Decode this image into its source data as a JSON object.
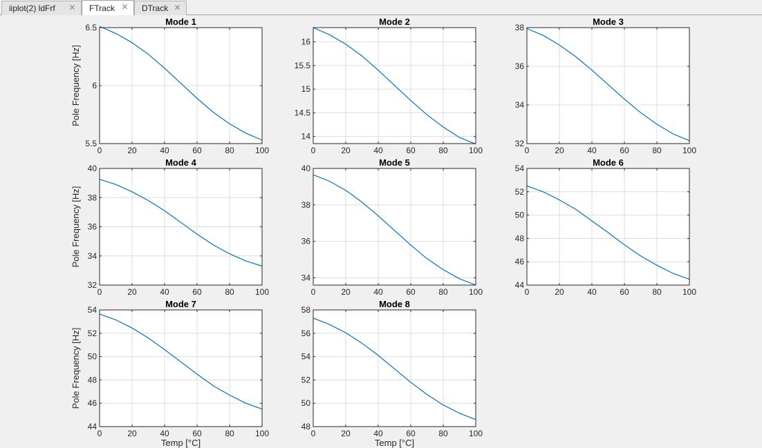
{
  "tabs": [
    {
      "label": "iiplot(2) ldFrf",
      "active": false
    },
    {
      "label": "FTrack",
      "active": true
    },
    {
      "label": "DTrack",
      "active": false
    }
  ],
  "icons": {
    "tab_close": "close-x-icon"
  },
  "colors": {
    "line": "#0072bd",
    "grid": "#dcdcdc",
    "axes": "#262626",
    "background": "#f0f0f0"
  },
  "figure": {
    "ylabel": "Pole Frequency [Hz]",
    "xlabel": "Temp [°C]",
    "grid": true
  },
  "chart_data": [
    {
      "type": "line",
      "title": "Mode 1",
      "xlim": [
        0,
        100
      ],
      "ylim": [
        5.5,
        6.5
      ],
      "xticks": [
        0,
        20,
        40,
        60,
        80,
        100
      ],
      "yticks": [
        5.5,
        6,
        6.5
      ],
      "ytick_labels": [
        "5.5",
        "6",
        "6.5"
      ],
      "ylabel": "Pole Frequency [Hz]",
      "xlabel": "",
      "x": [
        0,
        10,
        20,
        30,
        40,
        50,
        60,
        70,
        80,
        90,
        100
      ],
      "y": [
        6.51,
        6.45,
        6.37,
        6.27,
        6.15,
        6.02,
        5.89,
        5.77,
        5.67,
        5.59,
        5.53
      ]
    },
    {
      "type": "line",
      "title": "Mode 2",
      "xlim": [
        0,
        100
      ],
      "ylim": [
        13.85,
        16.3
      ],
      "xticks": [
        0,
        20,
        40,
        60,
        80,
        100
      ],
      "yticks": [
        14,
        14.5,
        15,
        15.5,
        16
      ],
      "ytick_labels": [
        "14",
        "14.5",
        "15",
        "15.5",
        "16"
      ],
      "ylabel": "",
      "xlabel": "",
      "x": [
        0,
        10,
        20,
        30,
        40,
        50,
        60,
        70,
        80,
        90,
        100
      ],
      "y": [
        16.3,
        16.15,
        15.95,
        15.7,
        15.4,
        15.08,
        14.76,
        14.46,
        14.2,
        13.98,
        13.84
      ]
    },
    {
      "type": "line",
      "title": "Mode 3",
      "xlim": [
        0,
        100
      ],
      "ylim": [
        32,
        38
      ],
      "xticks": [
        0,
        20,
        40,
        60,
        80,
        100
      ],
      "yticks": [
        32,
        34,
        36,
        38
      ],
      "ytick_labels": [
        "32",
        "34",
        "36",
        "38"
      ],
      "ylabel": "",
      "xlabel": "",
      "x": [
        0,
        10,
        20,
        30,
        40,
        50,
        60,
        70,
        80,
        90,
        100
      ],
      "y": [
        37.95,
        37.6,
        37.1,
        36.5,
        35.8,
        35.05,
        34.3,
        33.6,
        33.0,
        32.5,
        32.15
      ]
    },
    {
      "type": "line",
      "title": "Mode 4",
      "xlim": [
        0,
        100
      ],
      "ylim": [
        32,
        40
      ],
      "xticks": [
        0,
        20,
        40,
        60,
        80,
        100
      ],
      "yticks": [
        32,
        34,
        36,
        38,
        40
      ],
      "ytick_labels": [
        "32",
        "34",
        "36",
        "38",
        "40"
      ],
      "ylabel": "Pole Frequency [Hz]",
      "xlabel": "",
      "x": [
        0,
        10,
        20,
        30,
        40,
        50,
        60,
        70,
        80,
        90,
        100
      ],
      "y": [
        39.25,
        38.9,
        38.4,
        37.8,
        37.1,
        36.3,
        35.5,
        34.75,
        34.15,
        33.65,
        33.3
      ]
    },
    {
      "type": "line",
      "title": "Mode 5",
      "xlim": [
        0,
        100
      ],
      "ylim": [
        33.6,
        40
      ],
      "xticks": [
        0,
        20,
        40,
        60,
        80,
        100
      ],
      "yticks": [
        34,
        36,
        38,
        40
      ],
      "ytick_labels": [
        "34",
        "36",
        "38",
        "40"
      ],
      "ylabel": "",
      "xlabel": "",
      "x": [
        0,
        10,
        20,
        30,
        40,
        50,
        60,
        70,
        80,
        90,
        100
      ],
      "y": [
        39.65,
        39.3,
        38.8,
        38.15,
        37.4,
        36.6,
        35.8,
        35.05,
        34.45,
        33.95,
        33.6
      ]
    },
    {
      "type": "line",
      "title": "Mode 6",
      "xlim": [
        0,
        100
      ],
      "ylim": [
        44,
        54
      ],
      "xticks": [
        0,
        20,
        40,
        60,
        80,
        100
      ],
      "yticks": [
        44,
        46,
        48,
        50,
        52,
        54
      ],
      "ytick_labels": [
        "44",
        "46",
        "48",
        "50",
        "52",
        "54"
      ],
      "ylabel": "",
      "xlabel": "",
      "x": [
        0,
        10,
        20,
        30,
        40,
        50,
        60,
        70,
        80,
        90,
        100
      ],
      "y": [
        52.5,
        52.0,
        51.3,
        50.5,
        49.5,
        48.5,
        47.45,
        46.5,
        45.7,
        45.0,
        44.5
      ]
    },
    {
      "type": "line",
      "title": "Mode 7",
      "xlim": [
        0,
        100
      ],
      "ylim": [
        44,
        54
      ],
      "xticks": [
        0,
        20,
        40,
        60,
        80,
        100
      ],
      "yticks": [
        44,
        46,
        48,
        50,
        52,
        54
      ],
      "ytick_labels": [
        "44",
        "46",
        "48",
        "50",
        "52",
        "54"
      ],
      "ylabel": "Pole Frequency [Hz]",
      "xlabel": "Temp [°C]",
      "x": [
        0,
        10,
        20,
        30,
        40,
        50,
        60,
        70,
        80,
        90,
        100
      ],
      "y": [
        53.65,
        53.15,
        52.45,
        51.6,
        50.6,
        49.55,
        48.5,
        47.5,
        46.7,
        46.0,
        45.5
      ]
    },
    {
      "type": "line",
      "title": "Mode 8",
      "xlim": [
        0,
        100
      ],
      "ylim": [
        48,
        58
      ],
      "xticks": [
        0,
        20,
        40,
        60,
        80,
        100
      ],
      "yticks": [
        48,
        50,
        52,
        54,
        56,
        58
      ],
      "ytick_labels": [
        "48",
        "50",
        "52",
        "54",
        "56",
        "58"
      ],
      "ylabel": "",
      "xlabel": "Temp [°C]",
      "x": [
        0,
        10,
        20,
        30,
        40,
        50,
        60,
        70,
        80,
        90,
        100
      ],
      "y": [
        57.3,
        56.75,
        56.05,
        55.15,
        54.1,
        52.95,
        51.8,
        50.75,
        49.85,
        49.15,
        48.6
      ]
    }
  ]
}
